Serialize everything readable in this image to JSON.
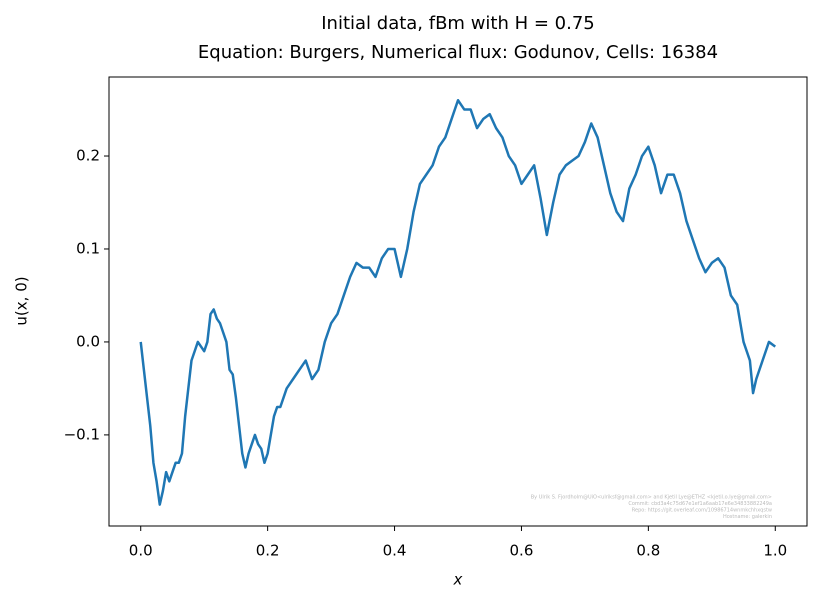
{
  "chart_data": {
    "type": "line",
    "title": "Initial data, fBm with H = 0.75",
    "subtitle": "Equation: Burgers, Numerical flux: Godunov, Cells: 16384",
    "xlabel": "x",
    "ylabel": "u(x, 0)",
    "x": [
      0.0,
      0.005,
      0.01,
      0.015,
      0.02,
      0.025,
      0.03,
      0.035,
      0.04,
      0.045,
      0.05,
      0.055,
      0.06,
      0.065,
      0.07,
      0.075,
      0.08,
      0.085,
      0.09,
      0.095,
      0.1,
      0.105,
      0.11,
      0.115,
      0.12,
      0.125,
      0.13,
      0.135,
      0.14,
      0.145,
      0.15,
      0.155,
      0.16,
      0.165,
      0.17,
      0.175,
      0.18,
      0.185,
      0.19,
      0.195,
      0.2,
      0.205,
      0.21,
      0.215,
      0.22,
      0.23,
      0.24,
      0.25,
      0.26,
      0.27,
      0.28,
      0.29,
      0.3,
      0.31,
      0.32,
      0.33,
      0.34,
      0.35,
      0.36,
      0.37,
      0.38,
      0.39,
      0.4,
      0.41,
      0.42,
      0.43,
      0.44,
      0.45,
      0.46,
      0.47,
      0.48,
      0.49,
      0.5,
      0.51,
      0.52,
      0.53,
      0.54,
      0.55,
      0.56,
      0.57,
      0.58,
      0.59,
      0.6,
      0.61,
      0.62,
      0.63,
      0.64,
      0.65,
      0.66,
      0.67,
      0.68,
      0.69,
      0.7,
      0.71,
      0.72,
      0.73,
      0.74,
      0.75,
      0.76,
      0.77,
      0.78,
      0.79,
      0.8,
      0.81,
      0.82,
      0.83,
      0.84,
      0.85,
      0.86,
      0.87,
      0.88,
      0.89,
      0.9,
      0.91,
      0.92,
      0.93,
      0.94,
      0.95,
      0.96,
      0.965,
      0.97,
      0.98,
      0.99,
      1.0
    ],
    "series": [
      {
        "name": "u",
        "color": "#1f77b4",
        "values": [
          0.0,
          -0.03,
          -0.06,
          -0.09,
          -0.13,
          -0.15,
          -0.175,
          -0.16,
          -0.14,
          -0.15,
          -0.14,
          -0.13,
          -0.13,
          -0.12,
          -0.08,
          -0.05,
          -0.02,
          -0.01,
          0.0,
          -0.005,
          -0.01,
          0.0,
          0.03,
          0.035,
          0.025,
          0.02,
          0.01,
          0.0,
          -0.03,
          -0.035,
          -0.06,
          -0.09,
          -0.12,
          -0.135,
          -0.12,
          -0.11,
          -0.1,
          -0.11,
          -0.115,
          -0.13,
          -0.12,
          -0.1,
          -0.08,
          -0.07,
          -0.07,
          -0.05,
          -0.04,
          -0.03,
          -0.02,
          -0.04,
          -0.03,
          0.0,
          0.02,
          0.03,
          0.05,
          0.07,
          0.085,
          0.08,
          0.08,
          0.07,
          0.09,
          0.1,
          0.1,
          0.07,
          0.1,
          0.14,
          0.17,
          0.18,
          0.19,
          0.21,
          0.22,
          0.24,
          0.26,
          0.25,
          0.25,
          0.23,
          0.24,
          0.245,
          0.23,
          0.22,
          0.2,
          0.19,
          0.17,
          0.18,
          0.19,
          0.155,
          0.115,
          0.15,
          0.18,
          0.19,
          0.195,
          0.2,
          0.215,
          0.235,
          0.22,
          0.19,
          0.16,
          0.14,
          0.13,
          0.165,
          0.18,
          0.2,
          0.21,
          0.19,
          0.16,
          0.18,
          0.18,
          0.16,
          0.13,
          0.11,
          0.09,
          0.075,
          0.085,
          0.09,
          0.08,
          0.05,
          0.04,
          0.0,
          -0.02,
          -0.055,
          -0.04,
          -0.02,
          0.0,
          -0.005
        ]
      }
    ],
    "xlim": [
      -0.05,
      1.05
    ],
    "ylim": [
      -0.198,
      0.285
    ],
    "xticks": [
      {
        "value": 0,
        "label": "0.0"
      },
      0.2,
      0.4,
      0.6,
      0.8,
      {
        "value": 1,
        "label": "1.0"
      }
    ],
    "yticks": [
      {
        "value": -0.1,
        "label": "−0.1"
      },
      {
        "value": 0,
        "label": "0.0"
      },
      0.1,
      0.2
    ],
    "grid": false,
    "watermark": [
      "By Ulrik S. Fjordholm@UiO<ulriksf@gmail.com> and Kjetil Lye@ETHZ <kjetil.o.lye@gmail.com>",
      "Commit: cbd3a4c75d67e1ef1a6aab17e6e34833882249a",
      "Repo: https://git.overleaf.com/10986714wnmkchhxqstw",
      "Hostname: galerkin"
    ]
  }
}
